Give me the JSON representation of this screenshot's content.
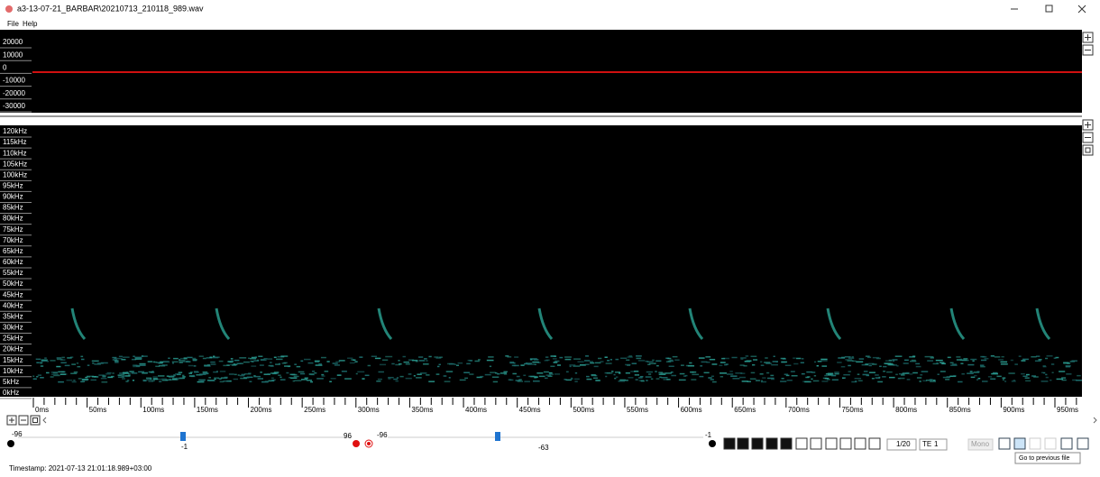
{
  "window": {
    "title": "a3-13-07-21_BARBAR\\20210713_210118_989.wav"
  },
  "menu": [
    "File",
    "Help"
  ],
  "waveform": {
    "labels": [
      "20000",
      "10000",
      "0",
      "-10000",
      "-20000",
      "-30000"
    ]
  },
  "spectrogram": {
    "freq_labels": [
      "120kHz",
      "115kHz",
      "110kHz",
      "105kHz",
      "100kHz",
      "95kHz",
      "90kHz",
      "85kHz",
      "80kHz",
      "75kHz",
      "70kHz",
      "65kHz",
      "60kHz",
      "55kHz",
      "50kHz",
      "45kHz",
      "40kHz",
      "35kHz",
      "30kHz",
      "25kHz",
      "20kHz",
      "15kHz",
      "10kHz",
      "5kHz",
      "0kHz"
    ],
    "time_labels": [
      "0ms",
      "50ms",
      "100ms",
      "150ms",
      "200ms",
      "250ms",
      "300ms",
      "350ms",
      "400ms",
      "450ms",
      "500ms",
      "550ms",
      "600ms",
      "650ms",
      "700ms",
      "750ms",
      "800ms",
      "850ms",
      "900ms",
      "950ms"
    ]
  },
  "controls": {
    "slider1_min": "-96",
    "slider1_value": "-1",
    "slider1_max": "96",
    "slider2_min": "-96",
    "slider2_value": "-63",
    "slider2_max": "-1",
    "page": "1/20",
    "mode": "TE",
    "factor": "1",
    "channel": "Mono",
    "tooltip": "Go to previous file"
  },
  "status": {
    "timestamp": "Timestamp: 2021-07-13 21:01:18.989+03:00"
  }
}
